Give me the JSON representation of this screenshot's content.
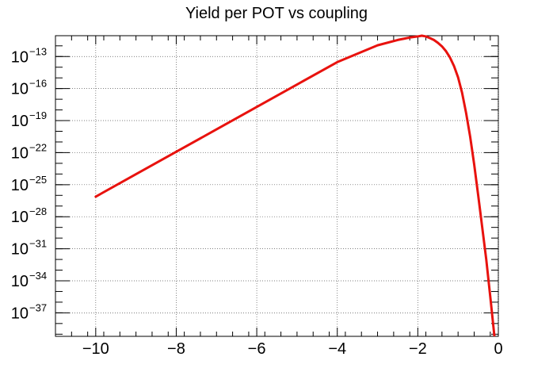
{
  "chart_data": {
    "type": "line",
    "title": "Yield per POT vs coupling",
    "xlabel": "",
    "ylabel": "",
    "xlim": [
      -11,
      0
    ],
    "ylim_log10": [
      -39.2,
      -11.05
    ],
    "y_scale": "log",
    "grid": true,
    "x_ticks": [
      -10,
      -8,
      -6,
      -4,
      -2,
      0
    ],
    "x_tick_labels": [
      "−10",
      "−8",
      "−6",
      "−4",
      "−2",
      "0"
    ],
    "y_ticks_log10": [
      -13,
      -16,
      -19,
      -22,
      -25,
      -28,
      -31,
      -34,
      -37
    ],
    "y_tick_labels": [
      {
        "base": "10",
        "exp": "−13"
      },
      {
        "base": "10",
        "exp": "−16"
      },
      {
        "base": "10",
        "exp": "−19"
      },
      {
        "base": "10",
        "exp": "−22"
      },
      {
        "base": "10",
        "exp": "−25"
      },
      {
        "base": "10",
        "exp": "−28"
      },
      {
        "base": "10",
        "exp": "−31"
      },
      {
        "base": "10",
        "exp": "−34"
      },
      {
        "base": "10",
        "exp": "−37"
      }
    ],
    "series": [
      {
        "color": "#e8120e",
        "x": [
          -10,
          -9,
          -8,
          -7,
          -6,
          -5,
          -4,
          -3,
          -2.5,
          -2.2,
          -2.0,
          -1.9,
          -1.8,
          -1.7,
          -1.6,
          -1.5,
          -1.4,
          -1.3,
          -1.2,
          -1.1,
          -1.0,
          -0.9,
          -0.8,
          -0.7,
          -0.6,
          -0.5,
          -0.4,
          -0.3,
          -0.2,
          -0.1
        ],
        "log10_y": [
          -26.12,
          -24.02,
          -21.92,
          -19.82,
          -17.72,
          -15.62,
          -13.52,
          -11.95,
          -11.45,
          -11.22,
          -11.12,
          -11.05,
          -11.12,
          -11.27,
          -11.45,
          -11.72,
          -12.05,
          -12.5,
          -13.1,
          -13.9,
          -14.95,
          -16.4,
          -18.3,
          -20.5,
          -23.1,
          -26.0,
          -29.0,
          -32.0,
          -35.5,
          -39.1
        ]
      }
    ]
  }
}
